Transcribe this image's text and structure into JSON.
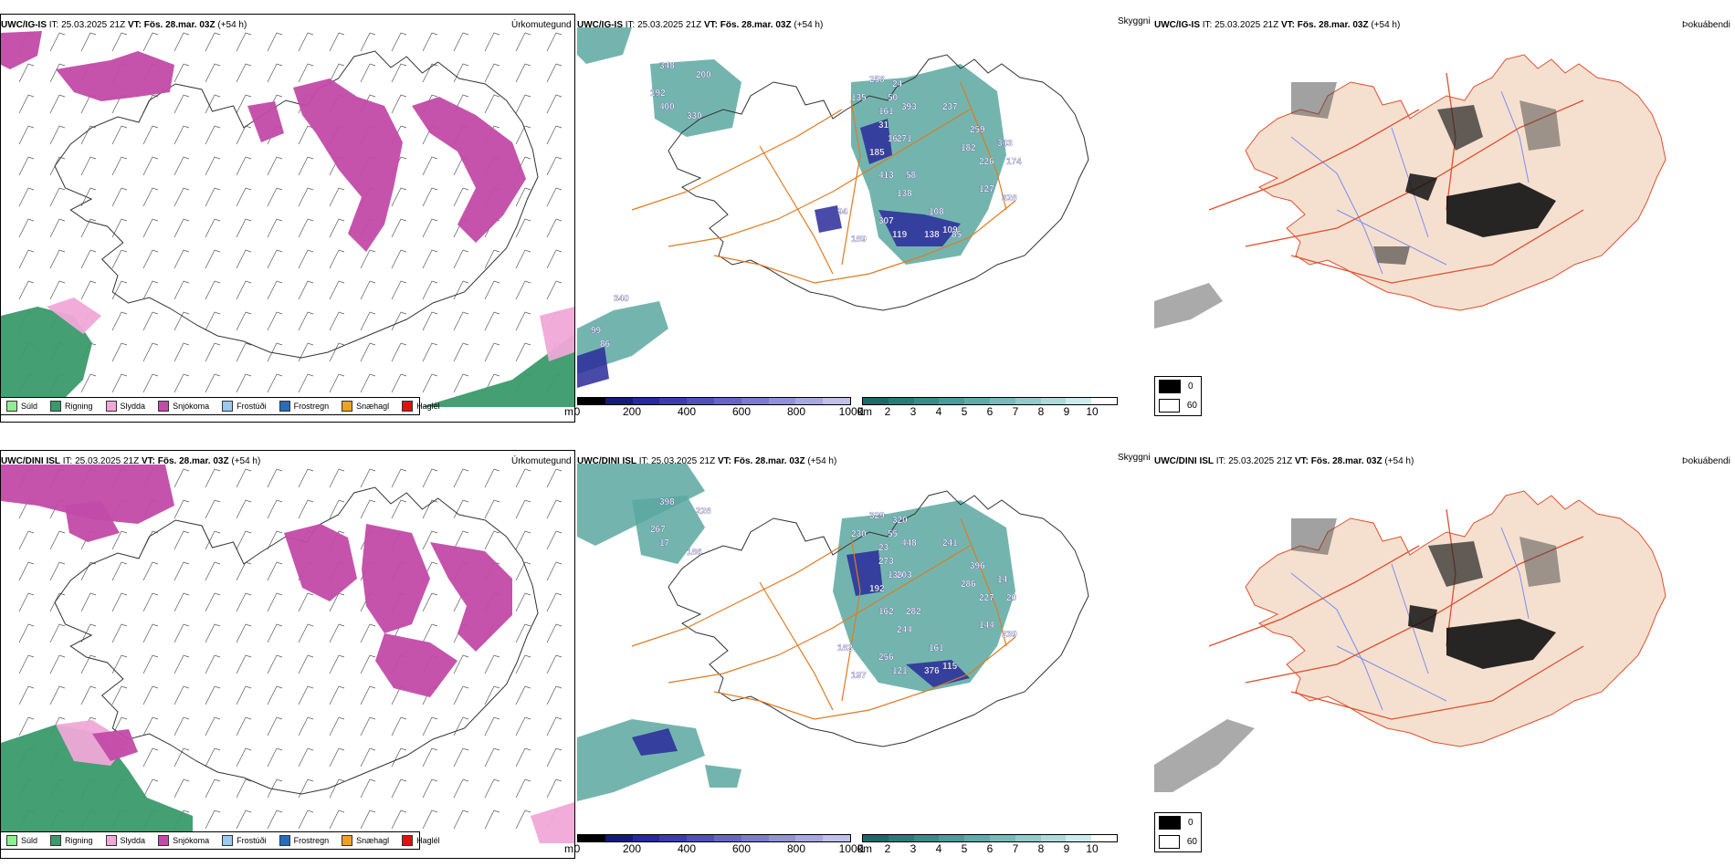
{
  "rows": [
    {
      "model": "UWC/IG-IS",
      "it_label": "IT:",
      "it_value": "25.03.2025 21Z",
      "vt_label": "VT:",
      "vt_value": "Fös. 28.mar. 03Z",
      "lead": "(+54 h)",
      "precip_title": "Úrkomutegund",
      "cloud_title": "Skyggni",
      "fog_title": "Þokuábendi",
      "cloud_labels": [
        "348",
        "200",
        "192",
        "400",
        "330",
        "258",
        "24",
        "135",
        "50",
        "161",
        "393",
        "237",
        "31",
        "16",
        "185",
        "271",
        "259",
        "182",
        "226",
        "413",
        "58",
        "138",
        "343",
        "174",
        "127",
        "328",
        "94",
        "307",
        "108",
        "109",
        "189",
        "119",
        "138",
        "85",
        "340",
        "99",
        "86"
      ]
    },
    {
      "model": "UWC/DINI ISL",
      "it_label": "IT:",
      "it_value": "25.03.2025 21Z",
      "vt_label": "VT:",
      "vt_value": "Fös. 28.mar. 03Z",
      "lead": "(+54 h)",
      "precip_title": "Úrkomutegund",
      "cloud_title": "Skyggni",
      "fog_title": "Þokuábendi",
      "cloud_labels": [
        "398",
        "228",
        "267",
        "17",
        "186",
        "329",
        "320",
        "230",
        "55",
        "23",
        "448",
        "241",
        "273",
        "136",
        "192",
        "203",
        "396",
        "286",
        "227",
        "162",
        "282",
        "244",
        "14",
        "20",
        "144",
        "239",
        "182",
        "256",
        "161",
        "115",
        "197",
        "121",
        "376"
      ]
    }
  ],
  "precip_legend": [
    {
      "label": "Súld",
      "color": "#90ee90"
    },
    {
      "label": "Rigning",
      "color": "#3a9a6a"
    },
    {
      "label": "Slydda",
      "color": "#f0a8d8"
    },
    {
      "label": "Snjókoma",
      "color": "#c24aa8"
    },
    {
      "label": "Frostúði",
      "color": "#9ac8f0"
    },
    {
      "label": "Frostregn",
      "color": "#2a6ab8"
    },
    {
      "label": "Snæhagl",
      "color": "#f0a020"
    },
    {
      "label": "Haglél",
      "color": "#e01010"
    }
  ],
  "base_bar": {
    "unit": "m",
    "ticks": [
      "0",
      "200",
      "400",
      "600",
      "800",
      "1000"
    ],
    "colors": [
      "#000000",
      "#141a7a",
      "#2828a0",
      "#3c3cae",
      "#5050b8",
      "#6666c2",
      "#7c7ccc",
      "#9292d6",
      "#a8a8e0",
      "#c0c0ea"
    ]
  },
  "vis_bar": {
    "unit": "km",
    "ticks": [
      "1",
      "2",
      "3",
      "4",
      "5",
      "6",
      "7",
      "8",
      "9",
      "10"
    ],
    "colors": [
      "#1a6a6a",
      "#2a7a7a",
      "#3a8a8a",
      "#4c9a9a",
      "#62aaaa",
      "#7ababa",
      "#94caca",
      "#b0dada",
      "#ccecec",
      "#ffffff"
    ]
  },
  "fog_legend": [
    {
      "label": "0",
      "color": "#000000"
    },
    {
      "label": "60",
      "color": "#ffffff"
    }
  ],
  "colors": {
    "snow": "#c24aa8",
    "rain": "#3a9a6a",
    "sleet": "#f0a8d8",
    "cloud_teal": "#5aa8a0",
    "cloud_deep": "#2a2a9a",
    "roads": "#e07a20",
    "fog_land": "#f5e0d0",
    "fog_roads": "#e05030",
    "fog_rivers": "#7a8ef0"
  }
}
